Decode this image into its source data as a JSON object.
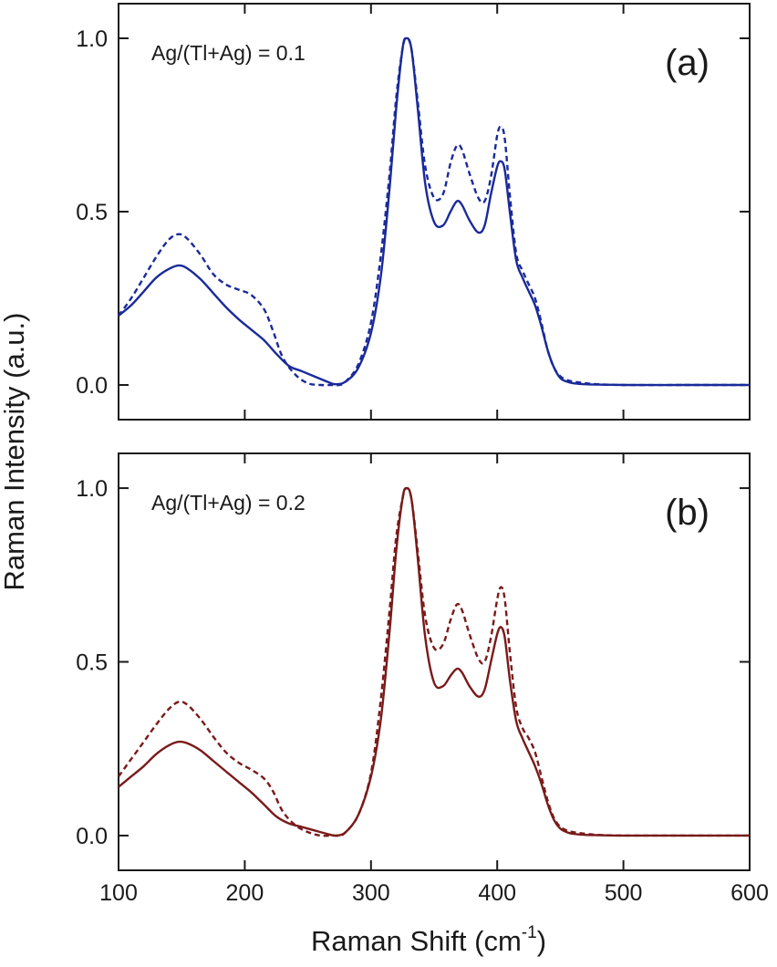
{
  "figure": {
    "ylabel": "Raman Intensity (a.u.)",
    "xlabel_main": "Raman Shift (cm",
    "xlabel_sup": "-1",
    "xlabel_end": ")"
  },
  "chart_data": [
    {
      "type": "line",
      "panel_tag": "(a)",
      "annotation": "Ag/(Tl+Ag) = 0.1",
      "xlim": [
        100,
        600
      ],
      "ylim": [
        -0.1,
        1.1
      ],
      "xticks": [
        100,
        200,
        300,
        400,
        500,
        600
      ],
      "xtick_labels_visible": false,
      "yticks": [
        0.0,
        0.5,
        1.0
      ],
      "ytick_labels": [
        "0.0",
        "0.5",
        "1.0"
      ],
      "grid": false,
      "color": "#1a2a9a",
      "series": [
        {
          "style": "solid",
          "x": [
            100,
            110,
            120,
            130,
            140,
            148,
            155,
            165,
            175,
            185,
            195,
            205,
            215,
            225,
            235,
            245,
            255,
            265,
            272,
            280,
            290,
            300,
            308,
            315,
            320,
            325,
            328,
            332,
            337,
            343,
            350,
            357,
            363,
            368,
            372,
            378,
            385,
            390,
            395,
            400,
            403,
            406,
            410,
            415,
            420,
            425,
            430,
            435,
            440,
            445,
            450,
            455,
            460,
            470,
            480,
            500,
            550,
            600
          ],
          "y": [
            0.2,
            0.23,
            0.27,
            0.31,
            0.335,
            0.345,
            0.335,
            0.305,
            0.265,
            0.225,
            0.19,
            0.16,
            0.13,
            0.09,
            0.055,
            0.04,
            0.025,
            0.01,
            0.002,
            0.01,
            0.05,
            0.15,
            0.32,
            0.58,
            0.8,
            0.97,
            1.0,
            0.97,
            0.8,
            0.58,
            0.47,
            0.46,
            0.5,
            0.53,
            0.52,
            0.475,
            0.44,
            0.46,
            0.55,
            0.63,
            0.645,
            0.62,
            0.5,
            0.36,
            0.31,
            0.27,
            0.23,
            0.17,
            0.1,
            0.05,
            0.02,
            0.01,
            0.005,
            0.002,
            0.001,
            0,
            0,
            0
          ]
        },
        {
          "style": "dashed",
          "x": [
            100,
            110,
            120,
            130,
            140,
            148,
            155,
            165,
            175,
            185,
            195,
            205,
            215,
            222,
            230,
            240,
            250,
            260,
            270,
            275,
            280,
            290,
            300,
            308,
            315,
            320,
            325,
            328,
            332,
            337,
            343,
            350,
            357,
            363,
            368,
            372,
            378,
            385,
            390,
            395,
            400,
            403,
            406,
            410,
            415,
            420,
            425,
            430,
            435,
            440,
            445,
            450,
            455,
            460,
            470,
            480,
            500,
            550,
            600
          ],
          "y": [
            0.2,
            0.25,
            0.31,
            0.37,
            0.42,
            0.435,
            0.42,
            0.375,
            0.32,
            0.29,
            0.275,
            0.26,
            0.22,
            0.16,
            0.08,
            0.03,
            0.005,
            0.0,
            0.0,
            0.0,
            0.01,
            0.06,
            0.18,
            0.38,
            0.62,
            0.83,
            0.97,
            1.0,
            0.97,
            0.82,
            0.63,
            0.54,
            0.55,
            0.64,
            0.69,
            0.68,
            0.61,
            0.54,
            0.53,
            0.6,
            0.72,
            0.745,
            0.71,
            0.55,
            0.38,
            0.33,
            0.29,
            0.25,
            0.18,
            0.1,
            0.05,
            0.025,
            0.015,
            0.01,
            0.005,
            0.002,
            0,
            0,
            0
          ]
        }
      ]
    },
    {
      "type": "line",
      "panel_tag": "(b)",
      "annotation": "Ag/(Tl+Ag) = 0.2",
      "xlim": [
        100,
        600
      ],
      "ylim": [
        -0.1,
        1.1
      ],
      "xticks": [
        100,
        200,
        300,
        400,
        500,
        600
      ],
      "xtick_labels": [
        "100",
        "200",
        "300",
        "400",
        "500",
        "600"
      ],
      "yticks": [
        0.0,
        0.5,
        1.0
      ],
      "ytick_labels": [
        "0.0",
        "0.5",
        "1.0"
      ],
      "grid": false,
      "color": "#7a1a1a",
      "series": [
        {
          "style": "solid",
          "x": [
            100,
            110,
            120,
            130,
            140,
            148,
            155,
            165,
            175,
            185,
            195,
            205,
            215,
            225,
            235,
            245,
            255,
            265,
            272,
            280,
            290,
            300,
            308,
            315,
            320,
            325,
            328,
            332,
            337,
            343,
            350,
            357,
            363,
            368,
            372,
            378,
            385,
            390,
            395,
            400,
            403,
            406,
            410,
            415,
            420,
            425,
            430,
            435,
            440,
            445,
            450,
            455,
            460,
            470,
            480,
            500,
            550,
            600
          ],
          "y": [
            0.14,
            0.17,
            0.2,
            0.235,
            0.26,
            0.27,
            0.265,
            0.245,
            0.215,
            0.185,
            0.155,
            0.125,
            0.09,
            0.055,
            0.035,
            0.025,
            0.015,
            0.005,
            0.0,
            0.01,
            0.06,
            0.17,
            0.34,
            0.6,
            0.82,
            0.97,
            1.0,
            0.97,
            0.8,
            0.57,
            0.44,
            0.43,
            0.46,
            0.48,
            0.47,
            0.43,
            0.4,
            0.42,
            0.5,
            0.58,
            0.6,
            0.57,
            0.45,
            0.33,
            0.28,
            0.24,
            0.2,
            0.15,
            0.09,
            0.045,
            0.02,
            0.01,
            0.005,
            0.002,
            0.001,
            0,
            0,
            0
          ]
        },
        {
          "style": "dashed",
          "x": [
            100,
            110,
            120,
            130,
            140,
            148,
            155,
            165,
            175,
            185,
            195,
            205,
            215,
            222,
            230,
            240,
            250,
            260,
            270,
            275,
            280,
            290,
            300,
            308,
            315,
            320,
            325,
            328,
            332,
            337,
            343,
            350,
            357,
            363,
            368,
            372,
            378,
            385,
            390,
            395,
            400,
            403,
            406,
            410,
            415,
            420,
            425,
            430,
            435,
            440,
            445,
            450,
            455,
            460,
            470,
            480,
            500,
            550,
            600
          ],
          "y": [
            0.17,
            0.22,
            0.27,
            0.32,
            0.365,
            0.385,
            0.375,
            0.335,
            0.285,
            0.24,
            0.21,
            0.19,
            0.165,
            0.13,
            0.07,
            0.03,
            0.01,
            0.0,
            0.0,
            0.0,
            0.01,
            0.06,
            0.18,
            0.4,
            0.66,
            0.86,
            0.97,
            1.0,
            0.97,
            0.82,
            0.63,
            0.54,
            0.55,
            0.62,
            0.665,
            0.65,
            0.58,
            0.51,
            0.5,
            0.57,
            0.68,
            0.715,
            0.68,
            0.53,
            0.37,
            0.31,
            0.28,
            0.24,
            0.17,
            0.1,
            0.05,
            0.025,
            0.015,
            0.01,
            0.005,
            0.002,
            0,
            0,
            0
          ]
        }
      ]
    }
  ]
}
